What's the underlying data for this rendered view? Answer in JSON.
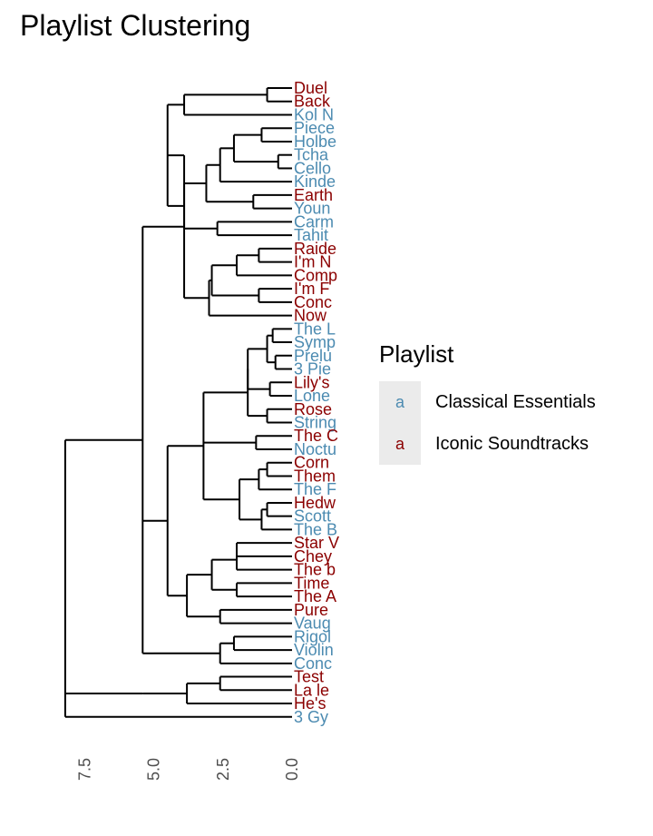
{
  "chart_data": {
    "type": "dendrogram",
    "title": "Playlist Clustering",
    "axis_ticks": [
      "7.5",
      "5.0",
      "2.5",
      "0.0"
    ],
    "axis_tick_values": [
      7.5,
      5.0,
      2.5,
      0.0
    ],
    "axis_max": 10.5,
    "colors": {
      "Classical Essentials": "#4c8bb1",
      "Iconic Soundtracks": "#8b0000"
    },
    "legend": {
      "title": "Playlist",
      "placement": "right",
      "key_glyph": "a",
      "items": [
        {
          "label": "Classical Essentials",
          "color": "#4c8bb1"
        },
        {
          "label": "Iconic Soundtracks",
          "color": "#8b0000"
        }
      ]
    },
    "leaves": [
      {
        "label": "Duel",
        "group": "Iconic Soundtracks"
      },
      {
        "label": "Back",
        "group": "Iconic Soundtracks"
      },
      {
        "label": "Kol N",
        "group": "Classical Essentials"
      },
      {
        "label": "Piece",
        "group": "Classical Essentials"
      },
      {
        "label": "Holbe",
        "group": "Classical Essentials"
      },
      {
        "label": "Tcha",
        "group": "Classical Essentials"
      },
      {
        "label": "Cello",
        "group": "Classical Essentials"
      },
      {
        "label": "Kinde",
        "group": "Classical Essentials"
      },
      {
        "label": "Earth",
        "group": "Iconic Soundtracks"
      },
      {
        "label": "Youn",
        "group": "Classical Essentials"
      },
      {
        "label": "Carm",
        "group": "Classical Essentials"
      },
      {
        "label": "Tahit",
        "group": "Classical Essentials"
      },
      {
        "label": "Raide",
        "group": "Iconic Soundtracks"
      },
      {
        "label": "I'm N",
        "group": "Iconic Soundtracks"
      },
      {
        "label": "Comp",
        "group": "Iconic Soundtracks"
      },
      {
        "label": "I'm F",
        "group": "Iconic Soundtracks"
      },
      {
        "label": "Conc",
        "group": "Iconic Soundtracks"
      },
      {
        "label": "Now",
        "group": "Iconic Soundtracks"
      },
      {
        "label": "The L",
        "group": "Classical Essentials"
      },
      {
        "label": "Symp",
        "group": "Classical Essentials"
      },
      {
        "label": "Prelu",
        "group": "Classical Essentials"
      },
      {
        "label": "3 Pie",
        "group": "Classical Essentials"
      },
      {
        "label": "Lily's",
        "group": "Iconic Soundtracks"
      },
      {
        "label": "Lone",
        "group": "Classical Essentials"
      },
      {
        "label": "Rose",
        "group": "Iconic Soundtracks"
      },
      {
        "label": "String",
        "group": "Classical Essentials"
      },
      {
        "label": "The C",
        "group": "Iconic Soundtracks"
      },
      {
        "label": "Noctu",
        "group": "Classical Essentials"
      },
      {
        "label": "Corn",
        "group": "Iconic Soundtracks"
      },
      {
        "label": "Them",
        "group": "Iconic Soundtracks"
      },
      {
        "label": "The F",
        "group": "Classical Essentials"
      },
      {
        "label": "Hedw",
        "group": "Iconic Soundtracks"
      },
      {
        "label": "Scott",
        "group": "Classical Essentials"
      },
      {
        "label": "The B",
        "group": "Classical Essentials"
      },
      {
        "label": "Star V",
        "group": "Iconic Soundtracks"
      },
      {
        "label": "Chey",
        "group": "Iconic Soundtracks"
      },
      {
        "label": "The b",
        "group": "Iconic Soundtracks"
      },
      {
        "label": "Time",
        "group": "Iconic Soundtracks"
      },
      {
        "label": "The A",
        "group": "Iconic Soundtracks"
      },
      {
        "label": "Pure",
        "group": "Iconic Soundtracks"
      },
      {
        "label": "Vaug",
        "group": "Classical Essentials"
      },
      {
        "label": "Rigol",
        "group": "Classical Essentials"
      },
      {
        "label": "Violin",
        "group": "Classical Essentials"
      },
      {
        "label": "Conc",
        "group": "Classical Essentials"
      },
      {
        "label": "Test",
        "group": "Iconic Soundtracks"
      },
      {
        "label": "La le",
        "group": "Iconic Soundtracks"
      },
      {
        "label": "He's",
        "group": "Iconic Soundtracks"
      },
      {
        "label": "3 Gy",
        "group": "Classical Essentials"
      }
    ],
    "merges": [
      [
        0,
        1,
        0.9
      ],
      [
        2,
        2,
        0.0
      ],
      [
        3,
        4,
        1.1
      ],
      [
        5,
        6,
        0.5
      ],
      [
        "m2",
        "m3",
        2.1
      ],
      [
        7,
        7,
        0.0
      ],
      [
        "m4",
        "m5",
        2.6
      ],
      [
        8,
        9,
        1.4
      ],
      [
        "m6",
        "m7",
        3.1
      ],
      [
        10,
        11,
        2.7
      ],
      [
        "m8",
        "m9",
        3.9
      ],
      [
        12,
        13,
        1.5
      ],
      [
        14,
        15,
        1.5
      ],
      [
        16,
        17,
        1.1
      ],
      [
        "m11",
        "m12",
        2.4
      ],
      [
        "m13",
        "m14",
        3.3
      ],
      [
        "m0",
        "m1",
        4.5
      ]
    ]
  }
}
